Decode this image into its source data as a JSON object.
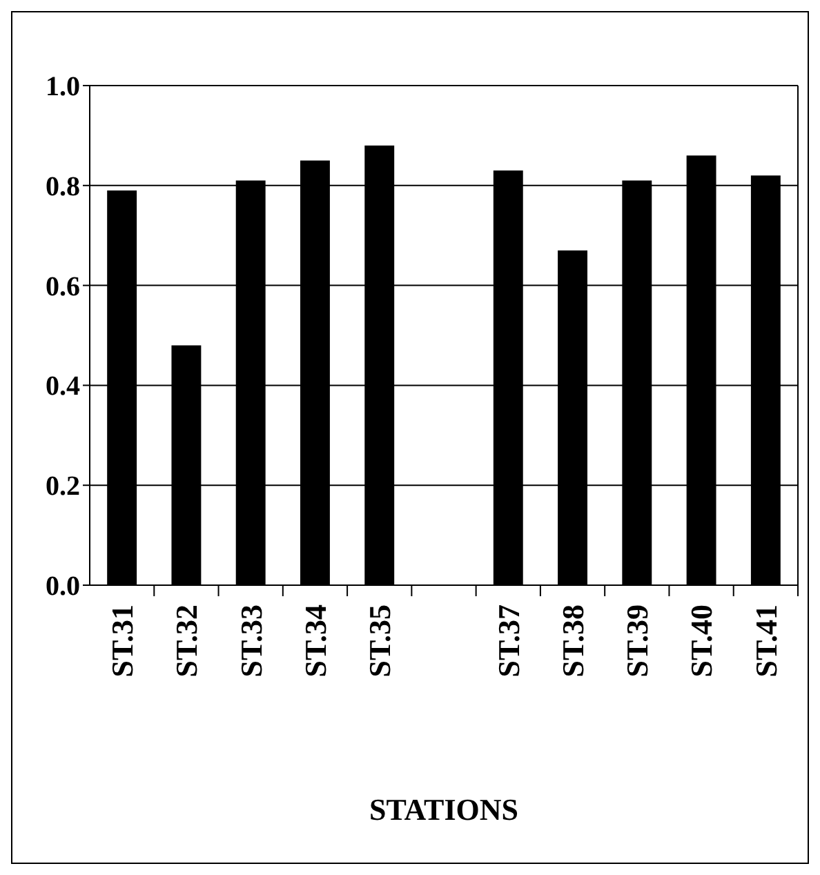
{
  "chart_data": {
    "type": "bar",
    "xlabel": "STATIONS",
    "categories": [
      "ST.31",
      "ST.32",
      "ST.33",
      "ST.34",
      "ST.35",
      null,
      "ST.37",
      "ST.38",
      "ST.39",
      "ST.40",
      "ST.41"
    ],
    "values": [
      0.79,
      0.48,
      0.81,
      0.85,
      0.88,
      null,
      0.83,
      0.67,
      0.81,
      0.86,
      0.82
    ],
    "color": "#000000",
    "ylim": [
      0,
      1
    ],
    "yticks": [
      {
        "value": 0,
        "label": "0.0"
      },
      {
        "value": 0.2,
        "label": "0.2"
      },
      {
        "value": 0.4,
        "label": "0.4"
      },
      {
        "value": 0.6,
        "label": "0.6"
      },
      {
        "value": 0.8,
        "label": "0.8"
      },
      {
        "value": 1,
        "label": "1.0"
      }
    ],
    "grid": "y"
  }
}
